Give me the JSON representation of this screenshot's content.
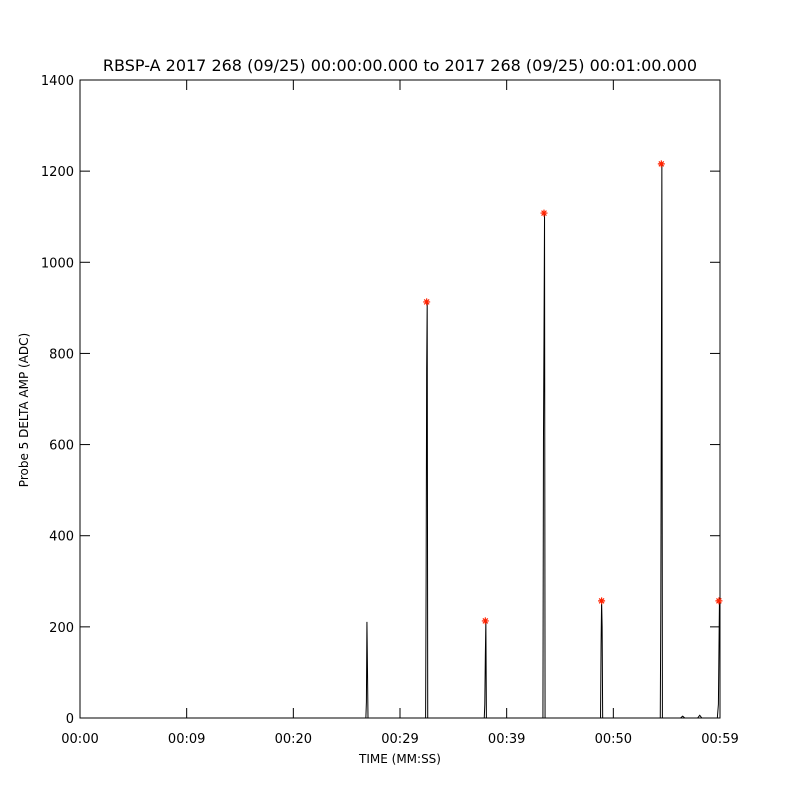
{
  "chart_data": {
    "type": "line",
    "title": "RBSP-A 2017 268 (09/25) 00:00:00.000 to 2017 268 (09/25) 00:01:00.000",
    "x_label": "TIME (MM:SS)",
    "y_label": "Probe 5 DELTA AMP (ADC)",
    "xlim": [
      0,
      60
    ],
    "ylim": [
      0,
      1400
    ],
    "xticks": [
      {
        "value": 0,
        "label": "00:00"
      },
      {
        "value": 10,
        "label": "00:09"
      },
      {
        "value": 20,
        "label": "00:20"
      },
      {
        "value": 30,
        "label": "00:29"
      },
      {
        "value": 40,
        "label": "00:39"
      },
      {
        "value": 50,
        "label": "00:50"
      },
      {
        "value": 60,
        "label": "00:59"
      }
    ],
    "yticks": [
      0,
      200,
      400,
      600,
      800,
      1000,
      1200,
      1400
    ],
    "grid": false,
    "series": [
      {
        "name": "amplitude",
        "type": "line",
        "color": "#000000",
        "x": [
          0,
          26.8,
          26.85,
          26.9,
          26.95,
          27.0,
          32.4,
          32.45,
          32.5,
          32.55,
          32.6,
          37.9,
          37.95,
          38.0,
          38.05,
          38.1,
          43.4,
          43.45,
          43.5,
          43.55,
          43.6,
          48.8,
          48.85,
          48.9,
          48.95,
          49.0,
          54.4,
          54.45,
          54.5,
          54.55,
          54.6,
          56.3,
          56.5,
          56.7,
          57.9,
          58.1,
          58.3,
          59.75,
          59.85,
          59.95
        ],
        "values": [
          0,
          0,
          35,
          211,
          110,
          0,
          0,
          310,
          765,
          913,
          0,
          0,
          30,
          135,
          213,
          0,
          0,
          610,
          840,
          1108,
          0,
          0,
          160,
          257,
          200,
          0,
          0,
          240,
          705,
          1216,
          0,
          0,
          4,
          0,
          0,
          6,
          0,
          0,
          30,
          257
        ]
      },
      {
        "name": "peaks",
        "type": "scatter",
        "color": "#ff2200",
        "x": [
          32.5,
          38.0,
          43.5,
          48.9,
          54.5,
          59.9
        ],
        "values": [
          913,
          213,
          1108,
          257,
          1216,
          257
        ]
      }
    ]
  }
}
